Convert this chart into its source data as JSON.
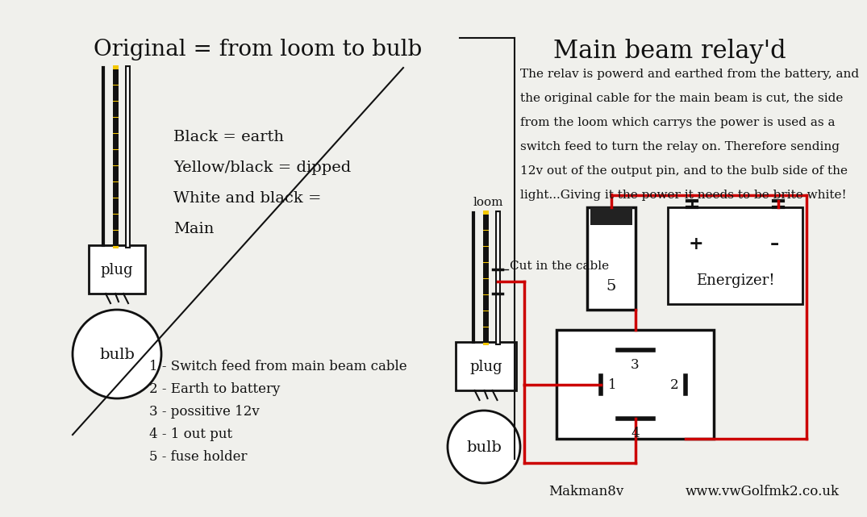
{
  "bg_color": "#f0f0ec",
  "title_left": "Original = from loom to bulb",
  "title_right": "Main beam relay'd",
  "description_lines": [
    "The relav is powerd and earthed from the battery, and",
    "the original cable for the main beam is cut, the side",
    "from the loom which carrys the power is used as a",
    "switch feed to turn the relay on. Therefore sending",
    "12v out of the output pin, and to the bulb side of the",
    "light...Giving it the power it needs to be brite white!"
  ],
  "legend_lines": [
    "Black = earth",
    "Yellow/black = dipped",
    "White and black =",
    "Main"
  ],
  "numbered_lines": [
    "1 - Switch feed from main beam cable",
    "2 - Earth to battery",
    "3 - possitive 12v",
    "4 - 1 out put",
    "5 - fuse holder"
  ],
  "footer_left": "Makman8v",
  "footer_right": "www.vwGolfmk2.co.uk",
  "wire_black": "#111111",
  "wire_yellow": "#f5c800",
  "wire_red": "#cc0000",
  "box_fill": "#ffffff",
  "text_color": "#111111"
}
